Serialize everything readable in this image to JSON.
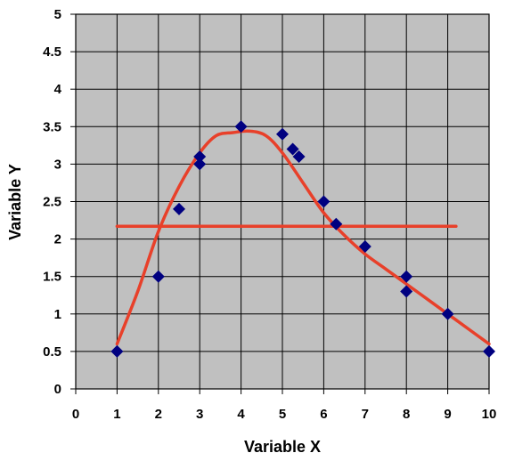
{
  "chart_data": {
    "type": "scatter",
    "title": "",
    "xlabel": "Variable X",
    "ylabel": "Variable Y",
    "xlim": [
      0,
      10
    ],
    "ylim": [
      0,
      5
    ],
    "x_ticks": [
      "0",
      "1",
      "2",
      "3",
      "4",
      "5",
      "6",
      "7",
      "8",
      "9",
      "10"
    ],
    "y_ticks": [
      "0",
      "0.5",
      "1",
      "1.5",
      "2",
      "2.5",
      "3",
      "3.5",
      "4",
      "4.5",
      "5"
    ],
    "grid": true,
    "legend": "none",
    "colors": {
      "plot_background": "#c0c0c0",
      "grid": "#000000",
      "points": "#000080",
      "lines": "#e8402a"
    },
    "series": [
      {
        "type": "scatter",
        "points": [
          [
            1,
            0.5
          ],
          [
            2,
            1.5
          ],
          [
            2.5,
            2.4
          ],
          [
            3,
            3.0
          ],
          [
            3,
            3.1
          ],
          [
            4,
            3.5
          ],
          [
            5,
            3.4
          ],
          [
            5.25,
            3.2
          ],
          [
            5.4,
            3.1
          ],
          [
            6,
            2.5
          ],
          [
            6.3,
            2.2
          ],
          [
            7,
            1.9
          ],
          [
            8,
            1.5
          ],
          [
            8,
            1.3
          ],
          [
            9,
            1.0
          ],
          [
            10,
            0.5
          ]
        ]
      },
      {
        "type": "line",
        "smooth": true,
        "points": [
          [
            1,
            0.6
          ],
          [
            1.5,
            1.3
          ],
          [
            2,
            2.1
          ],
          [
            2.5,
            2.7
          ],
          [
            3,
            3.15
          ],
          [
            3.4,
            3.38
          ],
          [
            3.8,
            3.42
          ],
          [
            4.2,
            3.44
          ],
          [
            4.6,
            3.38
          ],
          [
            5,
            3.15
          ],
          [
            5.5,
            2.75
          ],
          [
            6,
            2.35
          ],
          [
            6.5,
            2.05
          ],
          [
            7,
            1.8
          ],
          [
            7.5,
            1.6
          ],
          [
            8,
            1.4
          ],
          [
            8.5,
            1.2
          ],
          [
            9,
            1.0
          ],
          [
            9.5,
            0.8
          ],
          [
            10,
            0.6
          ]
        ]
      },
      {
        "type": "line",
        "smooth": false,
        "points": [
          [
            1,
            2.17
          ],
          [
            9.2,
            2.17
          ]
        ]
      }
    ]
  }
}
